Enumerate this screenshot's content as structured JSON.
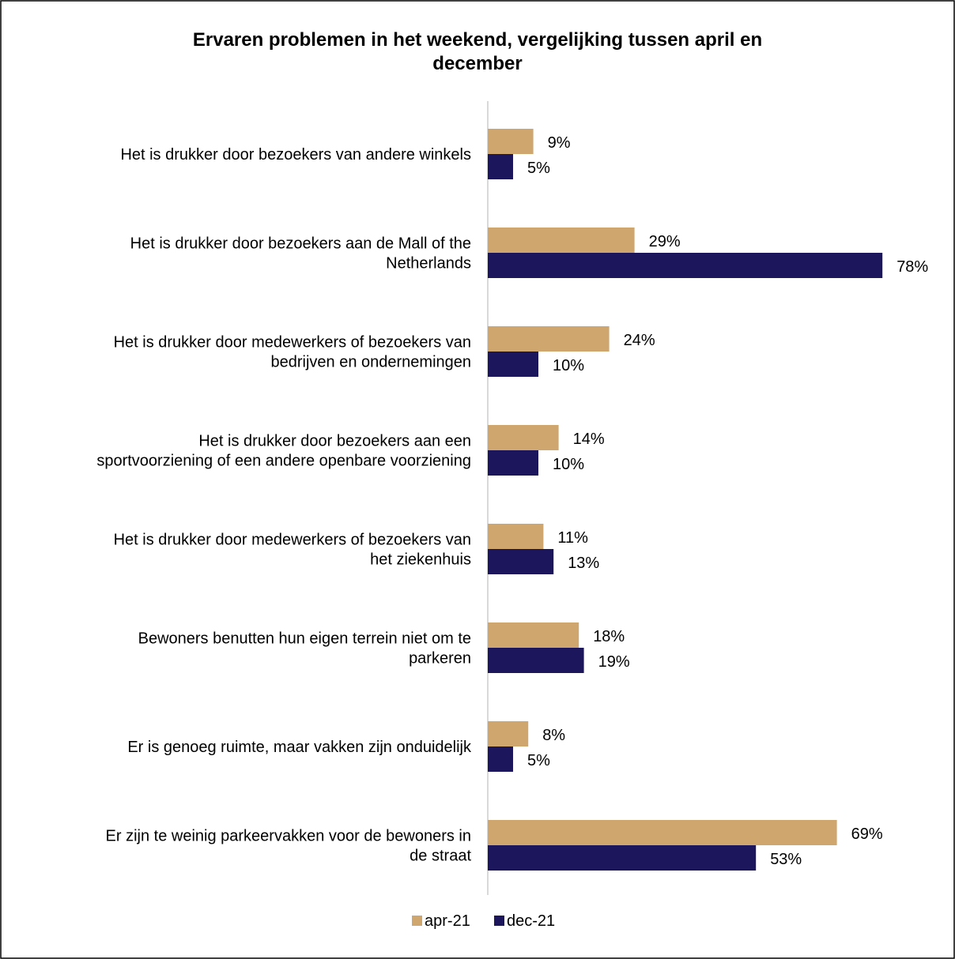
{
  "chart_data": {
    "type": "bar",
    "orientation": "horizontal",
    "title_lines": [
      "Ervaren problemen in het weekend, vergelijking tussen april en",
      "december"
    ],
    "categories": [
      [
        "Het is drukker door bezoekers van andere winkels"
      ],
      [
        "Het is drukker door bezoekers aan de Mall of the",
        "Netherlands"
      ],
      [
        "Het is drukker door medewerkers of bezoekers van",
        "bedrijven en ondernemingen"
      ],
      [
        "Het is drukker door bezoekers aan een",
        "sportvoorziening of een andere openbare voorziening"
      ],
      [
        "Het is drukker door medewerkers of bezoekers van",
        "het ziekenhuis"
      ],
      [
        "Bewoners benutten hun eigen terrein niet om te",
        "parkeren"
      ],
      [
        "Er is genoeg ruimte, maar vakken zijn onduidelijk"
      ],
      [
        "Er zijn te weinig parkeervakken voor de bewoners in",
        "de straat"
      ]
    ],
    "series": [
      {
        "name": "apr-21",
        "color": "#cfa66e",
        "values": [
          9,
          29,
          24,
          14,
          11,
          18,
          8,
          69
        ],
        "labels": [
          "9%",
          "29%",
          "24%",
          "14%",
          "11%",
          "18%",
          "8%",
          "69%"
        ]
      },
      {
        "name": "dec-21",
        "color": "#1c165c",
        "values": [
          5,
          78,
          10,
          10,
          13,
          19,
          5,
          53
        ],
        "labels": [
          "5%",
          "78%",
          "10%",
          "10%",
          "13%",
          "19%",
          "5%",
          "53%"
        ]
      }
    ],
    "xlim": [
      0,
      80
    ],
    "unit": "%",
    "grid": false,
    "legend": "bottom",
    "axis_color": "#d9d9d9"
  }
}
